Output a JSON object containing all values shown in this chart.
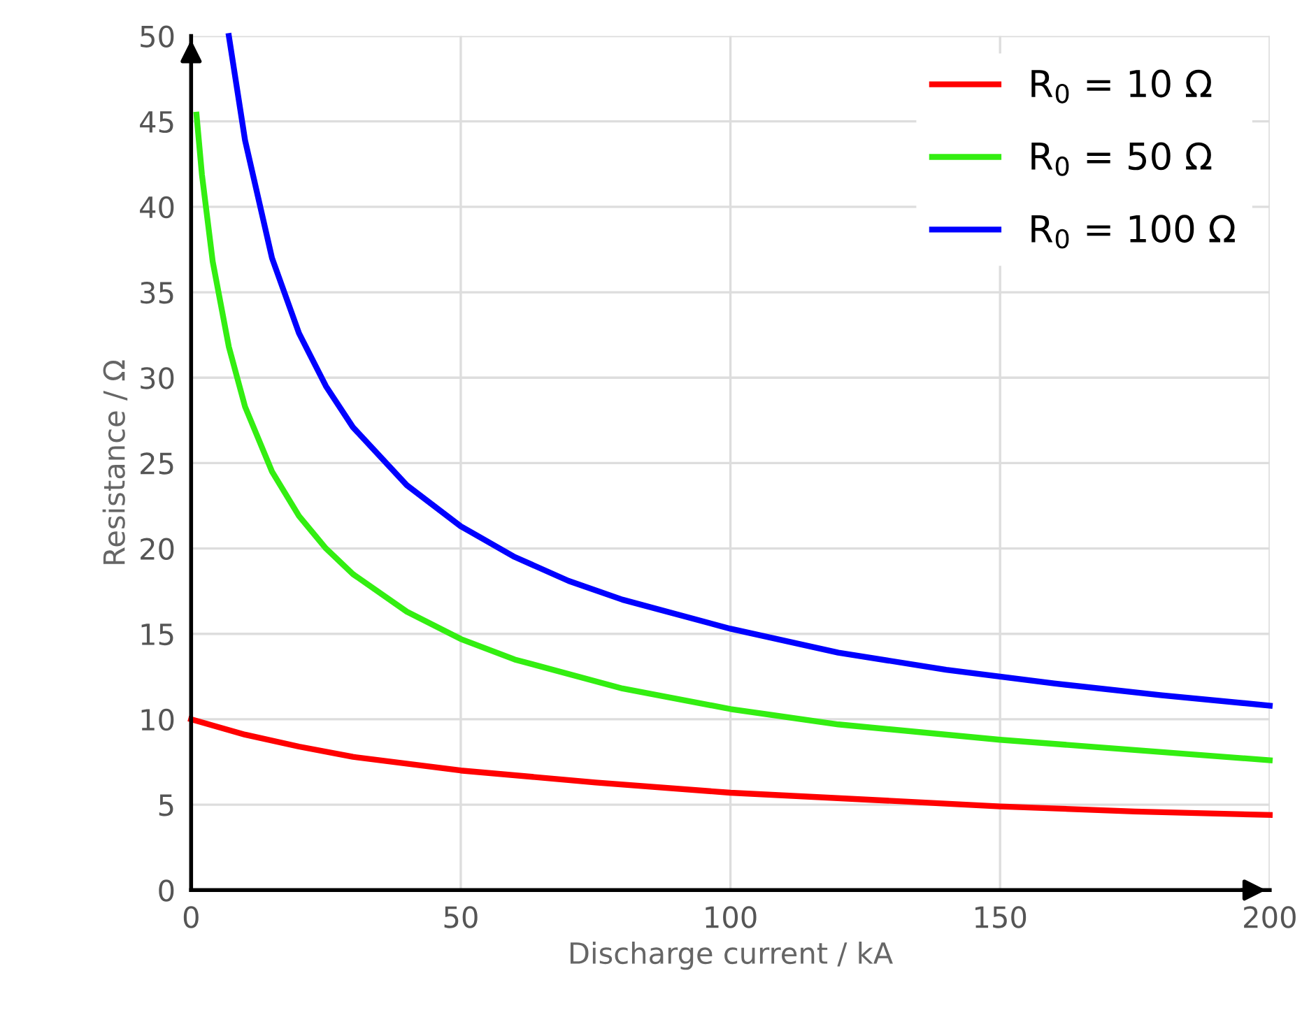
{
  "chart_data": {
    "type": "line",
    "xlabel": "Discharge current / kA",
    "ylabel": "Resistance / Ω",
    "xlim": [
      0,
      200
    ],
    "xticks": [
      0,
      50,
      100,
      150,
      200
    ],
    "ylim": [
      0,
      50
    ],
    "yticks": [
      0,
      5,
      10,
      15,
      20,
      25,
      30,
      35,
      40,
      45,
      50
    ],
    "grid": true,
    "legend": "top right",
    "marker": "none",
    "line_style": "solid",
    "series": [
      {
        "name": "R$_{0}$ = 10 Ω",
        "color": "#ff0000",
        "x": [
          0,
          10,
          20,
          30,
          50,
          75,
          100,
          125,
          150,
          175,
          200
        ],
        "values": [
          10,
          9.1,
          8.4,
          7.8,
          7.0,
          6.3,
          5.7,
          5.3,
          4.9,
          4.6,
          4.4
        ]
      },
      {
        "name": "R$_{0}$ = 50 Ω",
        "color": "#33ee11",
        "x": [
          1,
          2,
          4,
          7,
          10,
          15,
          20,
          25,
          30,
          40,
          50,
          60,
          80,
          100,
          120,
          150,
          200
        ],
        "values": [
          45.4,
          41.9,
          36.8,
          31.8,
          28.3,
          24.5,
          21.9,
          20.0,
          18.5,
          16.3,
          14.7,
          13.5,
          11.8,
          10.6,
          9.7,
          8.8,
          7.6
        ]
      },
      {
        "name": "R$_{0}$ = 100 Ω",
        "color": "#0000ff",
        "x": [
          7,
          10,
          15,
          20,
          25,
          30,
          40,
          50,
          60,
          70,
          80,
          100,
          120,
          140,
          160,
          180,
          200
        ],
        "values": [
          50,
          43.9,
          37.0,
          32.6,
          29.5,
          27.1,
          23.7,
          21.3,
          19.5,
          18.1,
          17.0,
          15.3,
          13.9,
          12.9,
          12.1,
          11.4,
          10.8
        ]
      }
    ]
  }
}
